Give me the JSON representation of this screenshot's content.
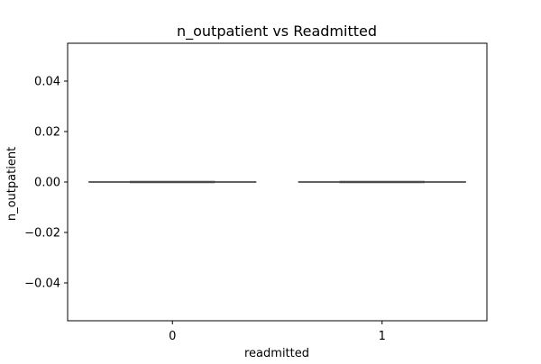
{
  "chart_data": {
    "type": "box",
    "title": "n_outpatient vs Readmitted",
    "xlabel": "readmitted",
    "ylabel": "n_outpatient",
    "categories": [
      "0",
      "1"
    ],
    "boxes": [
      {
        "category": "0",
        "whisker_low": 0.0,
        "q1": 0.0,
        "median": 0.0,
        "q3": 0.0,
        "whisker_high": 0.0
      },
      {
        "category": "1",
        "whisker_low": 0.0,
        "q1": 0.0,
        "median": 0.0,
        "q3": 0.0,
        "whisker_high": 0.0
      }
    ],
    "ylim": [
      -0.055,
      0.055
    ],
    "yticks": [
      0.04,
      0.02,
      0.0,
      -0.02,
      -0.04
    ],
    "ytick_labels": [
      "0.04",
      "0.02",
      "0.00",
      "−0.02",
      "−0.04"
    ],
    "grid": false,
    "legend": "none",
    "colors": {
      "box_line": "#4d4d4d",
      "axes": "#000000"
    }
  }
}
